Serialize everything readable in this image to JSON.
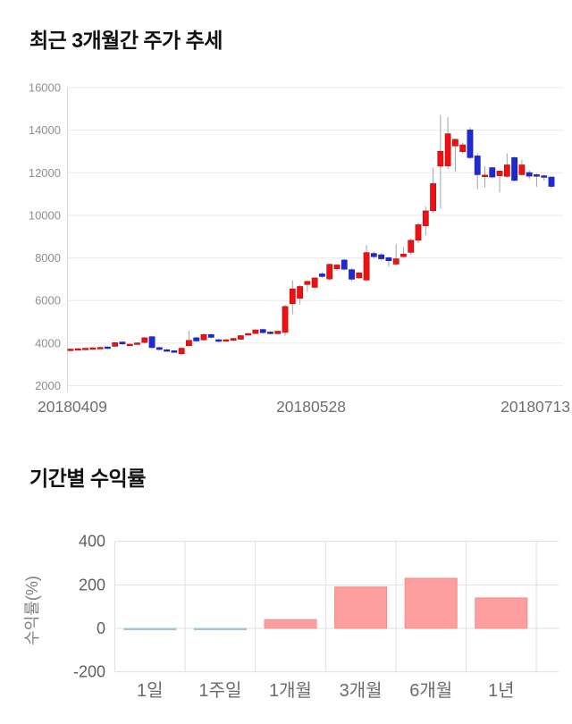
{
  "chart_data": [
    {
      "type": "candlestick",
      "title": "최근 3개월간 주가 추세",
      "x_tick_labels": [
        "20180409",
        "20180528",
        "20180713"
      ],
      "y_ticks": [
        16000,
        14000,
        12000,
        10000,
        8000,
        6000,
        4000,
        2000
      ],
      "ylim": [
        2000,
        16000
      ],
      "grid": true,
      "legend": "none",
      "colors": {
        "up": "#ee1111",
        "up_border": "#b30d0d",
        "down": "#1f2ad6",
        "down_border": "#141c9e",
        "wick": "#a3a3a3",
        "grid": "#e9e9e9",
        "axis": "#d5d5d5",
        "tick_text": "#8f8f8f",
        "x_text": "#6e6e6e"
      },
      "candles_ohlc": [
        [
          3700,
          3740,
          3650,
          3720
        ],
        [
          3710,
          3760,
          3690,
          3740
        ],
        [
          3730,
          3770,
          3700,
          3760
        ],
        [
          3750,
          3800,
          3720,
          3780
        ],
        [
          3770,
          3830,
          3740,
          3800
        ],
        [
          3820,
          3850,
          3720,
          3790
        ],
        [
          3850,
          4050,
          3830,
          4020
        ],
        [
          4050,
          4080,
          3920,
          3960
        ],
        [
          3930,
          3990,
          3900,
          3950
        ],
        [
          3960,
          4030,
          3940,
          4010
        ],
        [
          4030,
          4280,
          4000,
          4250
        ],
        [
          4300,
          4330,
          3730,
          3790
        ],
        [
          3790,
          3830,
          3650,
          3700
        ],
        [
          3690,
          3720,
          3610,
          3650
        ],
        [
          3640,
          3680,
          3550,
          3590
        ],
        [
          3500,
          3790,
          3440,
          3760
        ],
        [
          3880,
          4590,
          3850,
          4130
        ],
        [
          4250,
          4300,
          4050,
          4100
        ],
        [
          4150,
          4450,
          4120,
          4400
        ],
        [
          4400,
          4440,
          4220,
          4270
        ],
        [
          4160,
          4190,
          4030,
          4080
        ],
        [
          4100,
          4190,
          4070,
          4160
        ],
        [
          4130,
          4250,
          4100,
          4220
        ],
        [
          4180,
          4380,
          4150,
          4350
        ],
        [
          4400,
          4480,
          4370,
          4450
        ],
        [
          4450,
          4650,
          4420,
          4620
        ],
        [
          4640,
          4680,
          4450,
          4490
        ],
        [
          4520,
          4560,
          4420,
          4460
        ],
        [
          4440,
          4590,
          4410,
          4560
        ],
        [
          4500,
          5800,
          4350,
          5720
        ],
        [
          5850,
          6950,
          5350,
          6550
        ],
        [
          6100,
          6720,
          5800,
          6660
        ],
        [
          6750,
          6940,
          6410,
          6900
        ],
        [
          6620,
          7090,
          6550,
          7060
        ],
        [
          7250,
          7330,
          7070,
          7130
        ],
        [
          7010,
          7730,
          6950,
          7700
        ],
        [
          7490,
          7710,
          7390,
          7670
        ],
        [
          7900,
          7960,
          7420,
          7470
        ],
        [
          7450,
          7530,
          6920,
          7000
        ],
        [
          7060,
          7340,
          7010,
          7300
        ],
        [
          6960,
          8600,
          6900,
          8250
        ],
        [
          8210,
          8290,
          7980,
          8060
        ],
        [
          8150,
          8230,
          7890,
          7960
        ],
        [
          8010,
          8070,
          7590,
          7870
        ],
        [
          7710,
          8660,
          7650,
          7960
        ],
        [
          8060,
          8510,
          8000,
          8180
        ],
        [
          8260,
          8910,
          8150,
          8830
        ],
        [
          8830,
          9660,
          8700,
          9560
        ],
        [
          9510,
          10410,
          9060,
          10210
        ],
        [
          10220,
          12230,
          10110,
          11490
        ],
        [
          12310,
          14720,
          10310,
          13010
        ],
        [
          12320,
          14610,
          12160,
          13830
        ],
        [
          13260,
          13610,
          12060,
          13570
        ],
        [
          12990,
          13410,
          12900,
          13310
        ],
        [
          14010,
          14130,
          12630,
          12710
        ],
        [
          12790,
          12910,
          11210,
          11910
        ],
        [
          11830,
          12310,
          11310,
          11890
        ],
        [
          12240,
          12290,
          11740,
          11800
        ],
        [
          11860,
          12110,
          11070,
          12080
        ],
        [
          11830,
          12910,
          11790,
          12370
        ],
        [
          12710,
          12760,
          11590,
          11640
        ],
        [
          11910,
          12610,
          11860,
          12370
        ],
        [
          12010,
          12110,
          11690,
          11840
        ],
        [
          11910,
          11960,
          11340,
          11850
        ],
        [
          11860,
          11910,
          11640,
          11790
        ],
        [
          11800,
          11830,
          11270,
          11360
        ]
      ]
    },
    {
      "type": "bar",
      "title": "기간별 수익률",
      "ylabel": "수익률(%)",
      "categories": [
        "1일",
        "1주일",
        "1개월",
        "3개월",
        "6개월",
        "1년"
      ],
      "values": [
        -1,
        -6,
        40,
        190,
        230,
        140
      ],
      "y_ticks": [
        400,
        200,
        0,
        -200
      ],
      "ylim": [
        -200,
        400
      ],
      "grid": true,
      "legend": "none",
      "colors": {
        "positive": "#ff9e9e",
        "positive_border": "#f08c8c",
        "negative": "#a9cfe0",
        "negative_border": "#9bc4d8",
        "grid": "#dfdfdf",
        "tick_text": "#5f5f5f",
        "cat_text": "#6b6b6b",
        "ylabel_text": "#808080"
      }
    }
  ]
}
